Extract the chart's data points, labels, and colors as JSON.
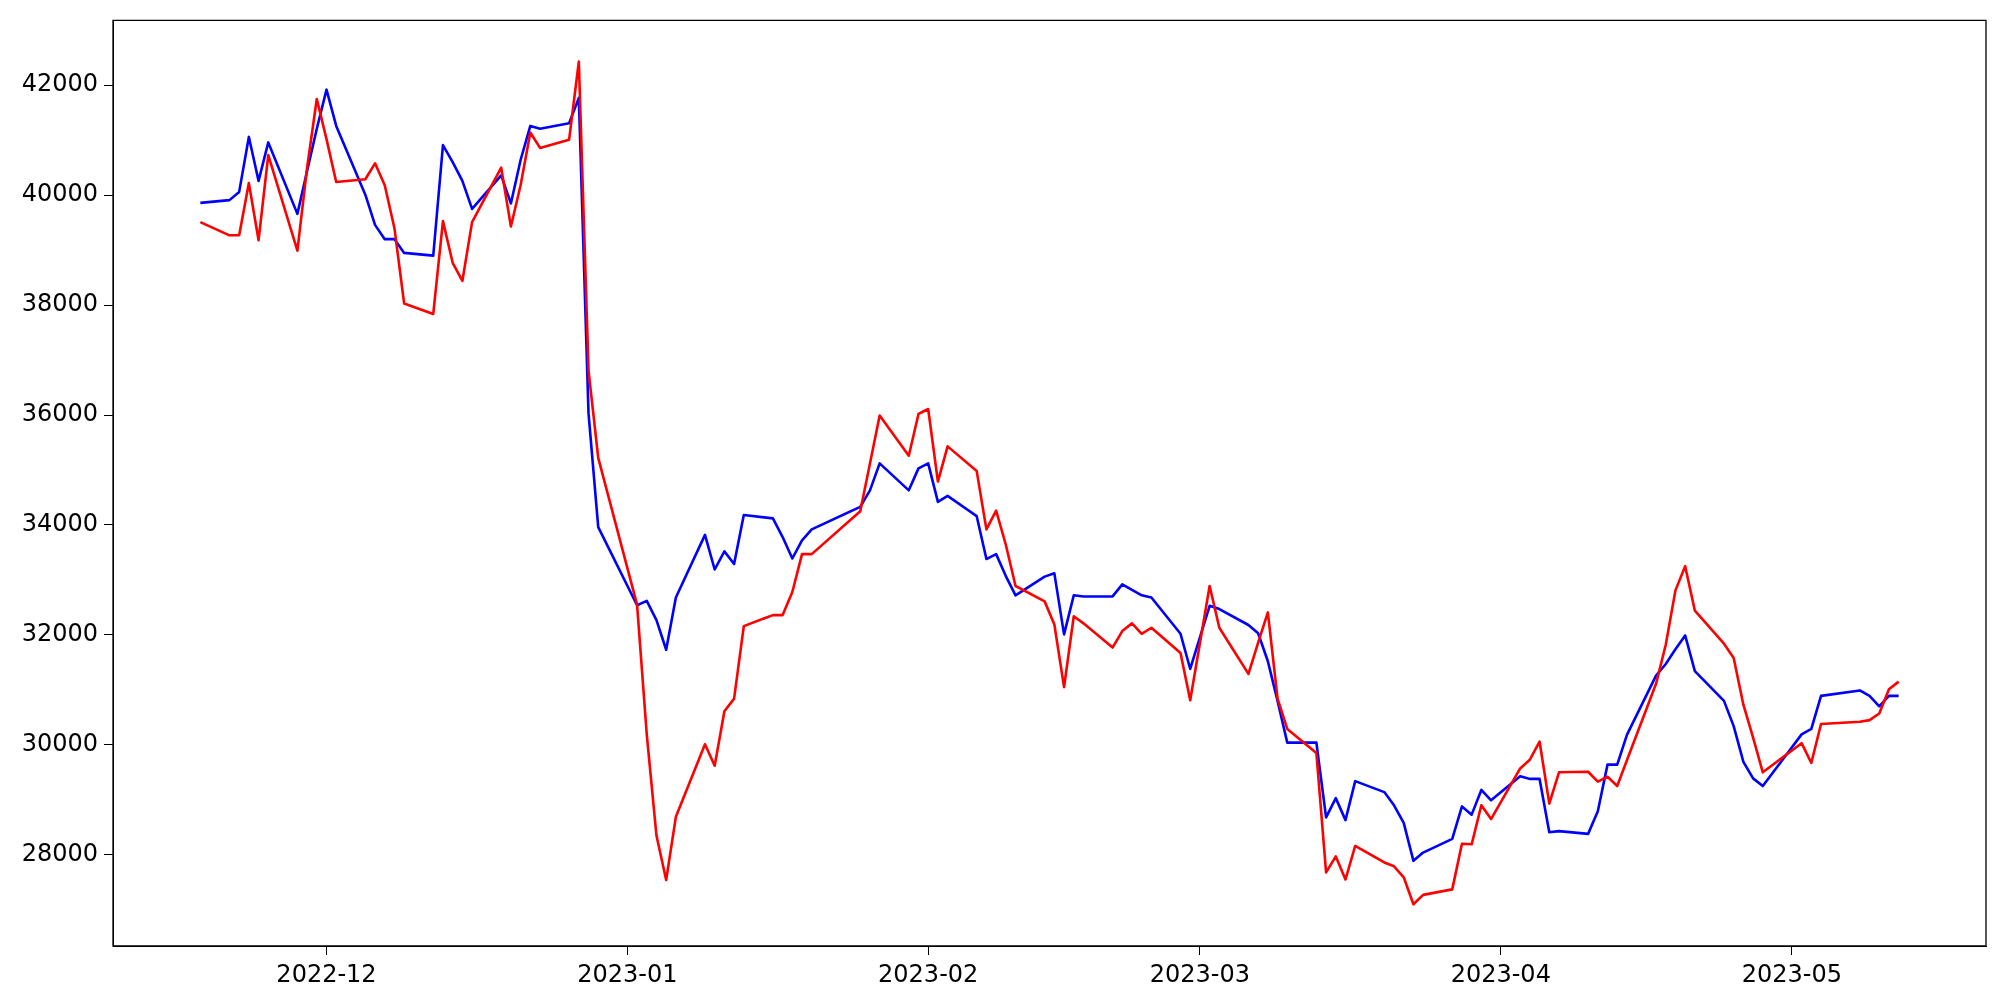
{
  "chart_data": {
    "type": "line",
    "x": [
      "2022-11-18",
      "2022-11-21",
      "2022-11-22",
      "2022-11-23",
      "2022-11-24",
      "2022-11-25",
      "2022-11-28",
      "2022-11-29",
      "2022-11-30",
      "2022-12-01",
      "2022-12-02",
      "2022-12-05",
      "2022-12-06",
      "2022-12-07",
      "2022-12-08",
      "2022-12-09",
      "2022-12-12",
      "2022-12-13",
      "2022-12-14",
      "2022-12-15",
      "2022-12-16",
      "2022-12-19",
      "2022-12-20",
      "2022-12-21",
      "2022-12-22",
      "2022-12-23",
      "2022-12-26",
      "2022-12-27",
      "2022-12-28",
      "2022-12-29",
      "2023-01-02",
      "2023-01-03",
      "2023-01-04",
      "2023-01-05",
      "2023-01-06",
      "2023-01-09",
      "2023-01-10",
      "2023-01-11",
      "2023-01-12",
      "2023-01-13",
      "2023-01-16",
      "2023-01-17",
      "2023-01-18",
      "2023-01-19",
      "2023-01-20",
      "2023-01-25",
      "2023-01-26",
      "2023-01-27",
      "2023-01-30",
      "2023-01-31",
      "2023-02-01",
      "2023-02-02",
      "2023-02-03",
      "2023-02-06",
      "2023-02-07",
      "2023-02-08",
      "2023-02-09",
      "2023-02-10",
      "2023-02-13",
      "2023-02-14",
      "2023-02-15",
      "2023-02-16",
      "2023-02-17",
      "2023-02-20",
      "2023-02-21",
      "2023-02-22",
      "2023-02-23",
      "2023-02-24",
      "2023-02-27",
      "2023-02-28",
      "2023-03-02",
      "2023-03-03",
      "2023-03-06",
      "2023-03-07",
      "2023-03-08",
      "2023-03-09",
      "2023-03-10",
      "2023-03-13",
      "2023-03-14",
      "2023-03-15",
      "2023-03-16",
      "2023-03-17",
      "2023-03-20",
      "2023-03-21",
      "2023-03-22",
      "2023-03-23",
      "2023-03-24",
      "2023-03-27",
      "2023-03-28",
      "2023-03-29",
      "2023-03-30",
      "2023-03-31",
      "2023-04-03",
      "2023-04-04",
      "2023-04-05",
      "2023-04-06",
      "2023-04-07",
      "2023-04-10",
      "2023-04-11",
      "2023-04-12",
      "2023-04-13",
      "2023-04-14",
      "2023-04-17",
      "2023-04-18",
      "2023-04-19",
      "2023-04-20",
      "2023-04-21",
      "2023-04-24",
      "2023-04-25",
      "2023-04-26",
      "2023-04-27",
      "2023-04-28",
      "2023-05-02",
      "2023-05-03",
      "2023-05-04",
      "2023-05-08",
      "2023-05-09",
      "2023-05-10",
      "2023-05-11",
      "2023-05-12"
    ],
    "series": [
      {
        "color": "#ff0000",
        "values": [
          39510,
          39270,
          39270,
          40220,
          39180,
          40730,
          38990,
          40500,
          41750,
          41020,
          40240,
          40290,
          40580,
          40180,
          39400,
          38030,
          37840,
          39530,
          38770,
          38440,
          39510,
          40500,
          39430,
          40180,
          41140,
          40860,
          41010,
          42430,
          36810,
          35220,
          32550,
          30190,
          28350,
          27540,
          28690,
          30010,
          29620,
          30610,
          30840,
          32160,
          32360,
          32360,
          32780,
          33470,
          33470,
          34250,
          35120,
          35990,
          35260,
          36020,
          36110,
          34790,
          35430,
          34980,
          33920,
          34260,
          33640,
          32890,
          32610,
          32190,
          31050,
          32340,
          32210,
          31770,
          32070,
          32210,
          32020,
          32130,
          31670,
          30810,
          32890,
          32130,
          31290,
          31860,
          32410,
          30840,
          30290,
          29850,
          27680,
          27970,
          27550,
          28160,
          27860,
          27790,
          27590,
          27100,
          27270,
          27370,
          28200,
          28190,
          28900,
          28650,
          29570,
          29730,
          30060,
          28930,
          29500,
          29510,
          29330,
          29420,
          29250,
          29720,
          31110,
          31820,
          32810,
          33250,
          32440,
          31840,
          31580,
          30730,
          30130,
          29500,
          30030,
          29670,
          30380,
          30420,
          30450,
          30570,
          31010,
          31150
        ]
      },
      {
        "color": "#0000ff",
        "values": [
          39860,
          39910,
          40060,
          41060,
          40260,
          40960,
          39660,
          40440,
          41210,
          41920,
          41260,
          40010,
          39460,
          39200,
          39200,
          38950,
          38900,
          40910,
          40600,
          40260,
          39750,
          40360,
          39850,
          40640,
          41260,
          41210,
          41310,
          41770,
          36030,
          33960,
          32540,
          32620,
          32270,
          31730,
          32680,
          33820,
          33190,
          33520,
          33290,
          34180,
          34120,
          33780,
          33390,
          33720,
          33920,
          34330,
          34630,
          35120,
          34630,
          35030,
          35120,
          34420,
          34530,
          34160,
          33380,
          33470,
          33070,
          32720,
          33060,
          33120,
          32010,
          32720,
          32700,
          32700,
          32920,
          32820,
          32720,
          32680,
          32020,
          31380,
          32530,
          32470,
          32180,
          32030,
          31520,
          30800,
          30040,
          30040,
          28680,
          29030,
          28630,
          29340,
          29140,
          28900,
          28580,
          27890,
          28040,
          28290,
          28880,
          28730,
          29180,
          28990,
          29430,
          29380,
          29380,
          28410,
          28430,
          28380,
          28790,
          29640,
          29640,
          30180,
          31260,
          31470,
          31740,
          31990,
          31340,
          30800,
          30340,
          29690,
          29390,
          29250,
          30190,
          30290,
          30890,
          30990,
          30890,
          30700,
          30890,
          30890
        ]
      }
    ],
    "xlim": [
      "2022-11-09",
      "2023-05-21"
    ],
    "xticks": [
      {
        "value": "2022-12-01",
        "label": "2022-12"
      },
      {
        "value": "2023-01-01",
        "label": "2023-01"
      },
      {
        "value": "2023-02-01",
        "label": "2023-02"
      },
      {
        "value": "2023-03-01",
        "label": "2023-03"
      },
      {
        "value": "2023-04-01",
        "label": "2023-04"
      },
      {
        "value": "2023-05-01",
        "label": "2023-05"
      }
    ],
    "ylim": [
      26340,
      43180
    ],
    "yticks": [
      28000,
      30000,
      32000,
      34000,
      36000,
      38000,
      40000,
      42000
    ],
    "grid": false,
    "legend": false,
    "marker": "none",
    "line_style": "solid"
  }
}
